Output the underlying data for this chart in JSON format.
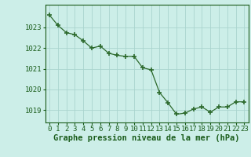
{
  "x": [
    0,
    1,
    2,
    3,
    4,
    5,
    6,
    7,
    8,
    9,
    10,
    11,
    12,
    13,
    14,
    15,
    16,
    17,
    18,
    19,
    20,
    21,
    22,
    23
  ],
  "y": [
    1023.6,
    1023.1,
    1022.75,
    1022.65,
    1022.35,
    1022.0,
    1022.1,
    1021.75,
    1021.65,
    1021.6,
    1021.6,
    1021.05,
    1020.95,
    1019.85,
    1019.35,
    1018.8,
    1018.85,
    1019.05,
    1019.15,
    1018.9,
    1019.15,
    1019.15,
    1019.4,
    1019.4
  ],
  "line_color": "#2d6a2d",
  "marker": "+",
  "marker_size": 4,
  "marker_linewidth": 1.2,
  "background_color": "#cceee8",
  "grid_color": "#aad4ce",
  "xlabel": "Graphe pression niveau de la mer (hPa)",
  "xlabel_color": "#1a5c1a",
  "xlabel_fontsize": 7.5,
  "tick_color": "#1a5c1a",
  "tick_fontsize": 6.5,
  "ylim": [
    1018.4,
    1024.1
  ],
  "yticks": [
    1019,
    1020,
    1021,
    1022,
    1023
  ],
  "xlim": [
    -0.5,
    23.5
  ],
  "xticks": [
    0,
    1,
    2,
    3,
    4,
    5,
    6,
    7,
    8,
    9,
    10,
    11,
    12,
    13,
    14,
    15,
    16,
    17,
    18,
    19,
    20,
    21,
    22,
    23
  ]
}
